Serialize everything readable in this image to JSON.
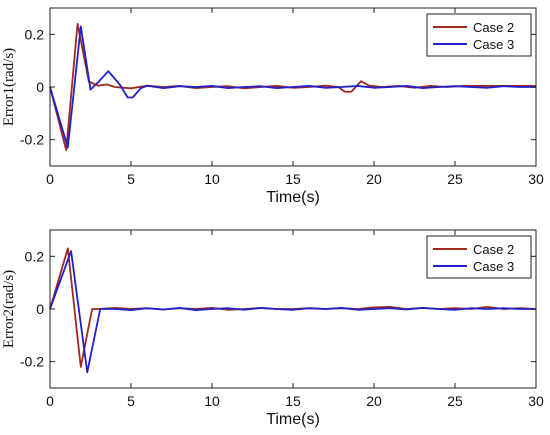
{
  "chart_data": [
    {
      "type": "line",
      "xlabel": "Time(s)",
      "ylabel": "Error1(rad/s)",
      "xlim": [
        0,
        30
      ],
      "ylim": [
        -0.3,
        0.3
      ],
      "xticks": [
        0,
        5,
        10,
        15,
        20,
        25,
        30
      ],
      "yticks": [
        -0.2,
        0,
        0.2
      ],
      "ytick_labels": [
        "-0.2",
        "0",
        "0.2"
      ],
      "grid": false,
      "legend": "top-right",
      "series": [
        {
          "name": "Case 2",
          "color": "#a0281e",
          "points": [
            [
              0,
              0
            ],
            [
              1,
              -0.24
            ],
            [
              1.7,
              0.24
            ],
            [
              2.4,
              0.02
            ],
            [
              3,
              0.005
            ],
            [
              3.5,
              0.01
            ],
            [
              4,
              0
            ],
            [
              5,
              -0.005
            ],
            [
              6,
              0.005
            ],
            [
              7,
              0
            ],
            [
              8,
              0.004
            ],
            [
              9,
              -0.004
            ],
            [
              10,
              0
            ],
            [
              11,
              0.003
            ],
            [
              12,
              -0.005
            ],
            [
              13,
              0
            ],
            [
              14,
              0.004
            ],
            [
              15,
              -0.003
            ],
            [
              16,
              0
            ],
            [
              17,
              0.005
            ],
            [
              17.8,
              0
            ],
            [
              18.2,
              -0.018
            ],
            [
              18.6,
              -0.018
            ],
            [
              19.2,
              0.022
            ],
            [
              19.7,
              0.005
            ],
            [
              20.5,
              0
            ],
            [
              21.5,
              0.004
            ],
            [
              22.5,
              -0.003
            ],
            [
              23.5,
              0.004
            ],
            [
              24.5,
              0
            ],
            [
              25.5,
              0.004
            ],
            [
              26.5,
              0.004
            ],
            [
              28,
              0.004
            ],
            [
              30,
              0.004
            ]
          ]
        },
        {
          "name": "Case 3",
          "color": "#1f1fcc",
          "points": [
            [
              0,
              0
            ],
            [
              1.1,
              -0.23
            ],
            [
              1.9,
              0.23
            ],
            [
              2.5,
              -0.01
            ],
            [
              3,
              0.02
            ],
            [
              3.6,
              0.06
            ],
            [
              4.3,
              0.01
            ],
            [
              4.8,
              -0.04
            ],
            [
              5.1,
              -0.04
            ],
            [
              5.6,
              -0.005
            ],
            [
              6,
              0.005
            ],
            [
              7,
              -0.004
            ],
            [
              8,
              0.003
            ],
            [
              9,
              0
            ],
            [
              10,
              0.004
            ],
            [
              11,
              -0.004
            ],
            [
              12,
              0
            ],
            [
              13,
              0.003
            ],
            [
              14,
              -0.004
            ],
            [
              15,
              0
            ],
            [
              16,
              0.004
            ],
            [
              17,
              -0.003
            ],
            [
              18,
              0
            ],
            [
              19,
              0.004
            ],
            [
              20,
              -0.003
            ],
            [
              21,
              0
            ],
            [
              22,
              0.004
            ],
            [
              23,
              -0.004
            ],
            [
              24,
              0
            ],
            [
              25,
              0.003
            ],
            [
              26,
              0
            ],
            [
              27,
              -0.003
            ],
            [
              28,
              0.003
            ],
            [
              29,
              0
            ],
            [
              30,
              0
            ]
          ]
        }
      ]
    },
    {
      "type": "line",
      "xlabel": "Time(s)",
      "ylabel": "Error2(rad/s)",
      "xlim": [
        0,
        30
      ],
      "ylim": [
        -0.3,
        0.3
      ],
      "xticks": [
        0,
        5,
        10,
        15,
        20,
        25,
        30
      ],
      "yticks": [
        -0.2,
        0,
        0.2
      ],
      "ytick_labels": [
        "-0.2",
        "0",
        "0.2"
      ],
      "grid": false,
      "legend": "top-right",
      "series": [
        {
          "name": "Case 2",
          "color": "#a0281e",
          "points": [
            [
              0,
              0
            ],
            [
              1.1,
              0.23
            ],
            [
              1.9,
              -0.22
            ],
            [
              2.6,
              0
            ],
            [
              3,
              0
            ],
            [
              4,
              0.004
            ],
            [
              5,
              0
            ],
            [
              6,
              0.003
            ],
            [
              7,
              -0.002
            ],
            [
              8,
              0.003
            ],
            [
              9,
              0
            ],
            [
              10,
              0.004
            ],
            [
              11,
              -0.003
            ],
            [
              12,
              0
            ],
            [
              13,
              0.004
            ],
            [
              14,
              0
            ],
            [
              15,
              0
            ],
            [
              16,
              0.003
            ],
            [
              17,
              0
            ],
            [
              18,
              0.003
            ],
            [
              19,
              0
            ],
            [
              20,
              0.006
            ],
            [
              21,
              0.008
            ],
            [
              22,
              0
            ],
            [
              23,
              0.004
            ],
            [
              24,
              0
            ],
            [
              25,
              0.003
            ],
            [
              26,
              0
            ],
            [
              27,
              0.008
            ],
            [
              28,
              0
            ],
            [
              29,
              0.003
            ],
            [
              30,
              0
            ]
          ]
        },
        {
          "name": "Case 3",
          "color": "#1f1fcc",
          "points": [
            [
              0,
              0
            ],
            [
              1.3,
              0.22
            ],
            [
              2.3,
              -0.24
            ],
            [
              3.1,
              0
            ],
            [
              4,
              0
            ],
            [
              5,
              -0.004
            ],
            [
              6,
              0.003
            ],
            [
              7,
              -0.002
            ],
            [
              8,
              0.004
            ],
            [
              9,
              -0.004
            ],
            [
              10,
              0
            ],
            [
              11,
              0.003
            ],
            [
              12,
              -0.003
            ],
            [
              13,
              0.004
            ],
            [
              14,
              0
            ],
            [
              15,
              -0.003
            ],
            [
              16,
              0.003
            ],
            [
              17,
              0
            ],
            [
              18,
              0.004
            ],
            [
              19,
              -0.003
            ],
            [
              20,
              0
            ],
            [
              21,
              0.003
            ],
            [
              22,
              -0.002
            ],
            [
              23,
              0.004
            ],
            [
              24,
              0
            ],
            [
              25,
              -0.003
            ],
            [
              26,
              0.003
            ],
            [
              27,
              0
            ],
            [
              28,
              0.003
            ],
            [
              29,
              0
            ],
            [
              30,
              0
            ]
          ]
        }
      ]
    }
  ]
}
